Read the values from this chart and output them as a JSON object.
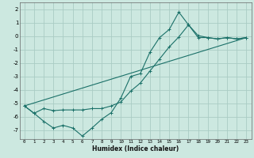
{
  "xlabel": "Humidex (Indice chaleur)",
  "ylabel": "",
  "bg_color": "#cce8e0",
  "grid_color": "#aaccc4",
  "line_color": "#1a7068",
  "xlim": [
    -0.5,
    23.5
  ],
  "ylim": [
    -7.7,
    2.5
  ],
  "xticks": [
    0,
    1,
    2,
    3,
    4,
    5,
    6,
    7,
    8,
    9,
    10,
    11,
    12,
    13,
    14,
    15,
    16,
    17,
    18,
    19,
    20,
    21,
    22,
    23
  ],
  "yticks": [
    -7,
    -6,
    -5,
    -4,
    -3,
    -2,
    -1,
    0,
    1,
    2
  ],
  "line1_x": [
    0,
    1,
    2,
    3,
    4,
    5,
    6,
    7,
    8,
    9,
    10,
    11,
    12,
    13,
    14,
    15,
    16,
    17,
    18,
    19,
    20,
    21,
    22,
    23
  ],
  "line1_y": [
    -5.2,
    -5.75,
    -6.35,
    -6.85,
    -6.65,
    -6.85,
    -7.45,
    -6.85,
    -6.2,
    -5.7,
    -4.6,
    -3.0,
    -2.8,
    -1.2,
    -0.1,
    0.5,
    1.8,
    0.85,
    0.05,
    -0.1,
    -0.2,
    -0.1,
    -0.2,
    -0.1
  ],
  "line2_x": [
    0,
    1,
    2,
    3,
    4,
    5,
    6,
    7,
    8,
    9,
    10,
    11,
    12,
    13,
    14,
    15,
    16,
    17,
    18,
    19,
    20,
    21,
    22,
    23
  ],
  "line2_y": [
    -5.2,
    -5.75,
    -5.4,
    -5.55,
    -5.5,
    -5.5,
    -5.5,
    -5.4,
    -5.4,
    -5.2,
    -4.9,
    -4.1,
    -3.5,
    -2.6,
    -1.7,
    -0.8,
    -0.05,
    0.85,
    -0.1,
    -0.1,
    -0.2,
    -0.1,
    -0.2,
    -0.1
  ],
  "line3_x": [
    0,
    23
  ],
  "line3_y": [
    -5.2,
    -0.1
  ]
}
